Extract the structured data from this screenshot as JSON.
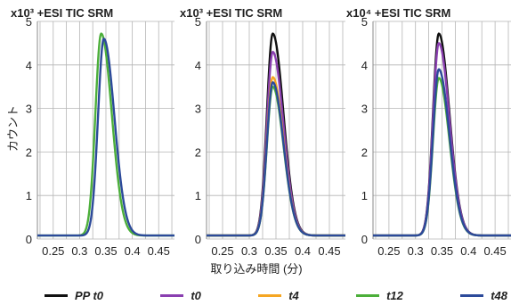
{
  "figure": {
    "ylabel": "カウント",
    "xlabel": "取り込み時間 (分)"
  },
  "colors": {
    "PP_t0": "#111111",
    "t0": "#8a3fb0",
    "t4": "#f5a623",
    "t12": "#4caf3a",
    "t48": "#2c4a9a",
    "grid": "#b5b5b5"
  },
  "legend": [
    {
      "label": "PP t0",
      "color_key": "PP_t0"
    },
    {
      "label": "t0",
      "color_key": "t0"
    },
    {
      "label": "t4",
      "color_key": "t4"
    },
    {
      "label": "t12",
      "color_key": "t12"
    },
    {
      "label": "t48",
      "color_key": "t48"
    }
  ],
  "chart_data": [
    {
      "type": "line",
      "title": "x10³  +ESI TIC SRM",
      "xlim": [
        0.22,
        0.48
      ],
      "ylim": [
        0,
        5
      ],
      "xticks": [
        0.25,
        0.3,
        0.35,
        0.4,
        0.45
      ],
      "xtick_labels": [
        "0.25",
        "0.3",
        "0.35",
        "0.4",
        "0.45"
      ],
      "yticks": [
        0,
        1,
        2,
        3,
        4,
        5
      ],
      "ytick_labels": [
        "0",
        "1",
        "2",
        "3",
        "4",
        "5"
      ],
      "peak_shape": {
        "baseline": 0.08,
        "sigma_left": 0.011,
        "sigma_right": 0.02
      },
      "series": [
        {
          "name": "t12",
          "color_key": "t12",
          "peak_x": 0.341,
          "peak_y": 4.72
        },
        {
          "name": "t48",
          "color_key": "t48",
          "peak_x": 0.346,
          "peak_y": 4.6
        }
      ]
    },
    {
      "type": "line",
      "title": "x10³  +ESI TIC SRM",
      "xlim": [
        0.22,
        0.48
      ],
      "ylim": [
        0,
        5
      ],
      "xticks": [
        0.25,
        0.3,
        0.35,
        0.4,
        0.45
      ],
      "xtick_labels": [
        "0.25",
        "0.3",
        "0.35",
        "0.4",
        "0.45"
      ],
      "yticks": [
        0,
        1,
        2,
        3,
        4,
        5
      ],
      "ytick_labels": [
        "0",
        "1",
        "2",
        "3",
        "4",
        "5"
      ],
      "peak_shape": {
        "baseline": 0.08,
        "sigma_left": 0.011,
        "sigma_right": 0.02
      },
      "series": [
        {
          "name": "PP t0",
          "color_key": "PP_t0",
          "peak_x": 0.344,
          "peak_y": 4.72
        },
        {
          "name": "t0",
          "color_key": "t0",
          "peak_x": 0.344,
          "peak_y": 4.3
        },
        {
          "name": "t4",
          "color_key": "t4",
          "peak_x": 0.344,
          "peak_y": 3.72
        },
        {
          "name": "t12",
          "color_key": "t12",
          "peak_x": 0.344,
          "peak_y": 3.5
        },
        {
          "name": "t48",
          "color_key": "t48",
          "peak_x": 0.344,
          "peak_y": 3.6
        }
      ]
    },
    {
      "type": "line",
      "title": "x10⁴  +ESI TIC SRM",
      "xlim": [
        0.22,
        0.48
      ],
      "ylim": [
        0,
        5
      ],
      "xticks": [
        0.25,
        0.3,
        0.35,
        0.4,
        0.45
      ],
      "xtick_labels": [
        "0.25",
        "0.3",
        "0.35",
        "0.4",
        "0.45"
      ],
      "yticks": [
        0,
        1,
        2,
        3,
        4,
        5
      ],
      "ytick_labels": [
        "0",
        "1",
        "2",
        "3",
        "4",
        "5"
      ],
      "peak_shape": {
        "baseline": 0.08,
        "sigma_left": 0.011,
        "sigma_right": 0.02
      },
      "series": [
        {
          "name": "PP t0",
          "color_key": "PP_t0",
          "peak_x": 0.344,
          "peak_y": 4.72
        },
        {
          "name": "t0",
          "color_key": "t0",
          "peak_x": 0.344,
          "peak_y": 4.5
        },
        {
          "name": "t12",
          "color_key": "t12",
          "peak_x": 0.344,
          "peak_y": 3.7
        },
        {
          "name": "t48",
          "color_key": "t48",
          "peak_x": 0.344,
          "peak_y": 3.9
        }
      ]
    }
  ]
}
